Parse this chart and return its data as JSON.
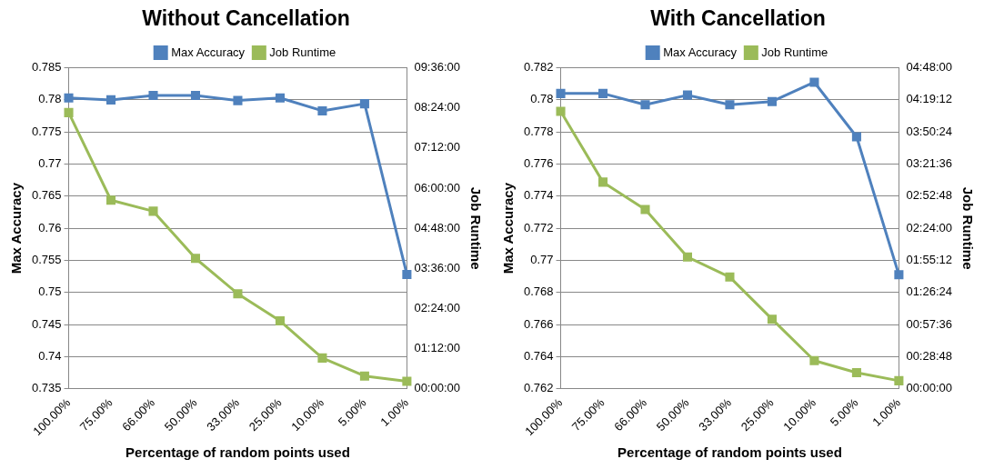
{
  "chart_data": [
    {
      "type": "line",
      "title": "Without Cancellation",
      "xlabel": "Percentage of random points used",
      "ylabel": "Max Accuracy",
      "y2label": "Job Runtime",
      "categories": [
        "100.00%",
        "75.00%",
        "66.00%",
        "50.00%",
        "33.00%",
        "25.00%",
        "10.00%",
        "5.00%",
        "1.00%"
      ],
      "series": [
        {
          "name": "Max Accuracy",
          "color": "#4f81bd",
          "values": [
            0.7803,
            0.78,
            0.7807,
            0.7807,
            0.7799,
            0.7803,
            0.7783,
            0.7794,
            0.7528
          ]
        },
        {
          "name": "Job Runtime",
          "color": "#9bbb59",
          "axis": "y2",
          "values": [
            8.26,
            5.64,
            5.31,
            3.9,
            2.84,
            2.03,
            0.92,
            0.38,
            0.22
          ]
        }
      ],
      "ylim": [
        0.735,
        0.785
      ],
      "yticks": [
        0.735,
        0.74,
        0.745,
        0.75,
        0.755,
        0.76,
        0.765,
        0.77,
        0.775,
        0.78,
        0.785
      ],
      "y2lim": [
        0,
        9.6
      ],
      "y2ticks": [
        {
          "value": 0,
          "label": "00:00:00"
        },
        {
          "value": 1.2,
          "label": "01:12:00"
        },
        {
          "value": 2.4,
          "label": "02:24:00"
        },
        {
          "value": 3.6,
          "label": "03:36:00"
        },
        {
          "value": 4.8,
          "label": "04:48:00"
        },
        {
          "value": 6,
          "label": "06:00:00"
        },
        {
          "value": 7.2,
          "label": "07:12:00"
        },
        {
          "value": 8.4,
          "label": "08:24:00"
        },
        {
          "value": 9.6,
          "label": "09:36:00"
        }
      ],
      "grid": "y",
      "legend": "top",
      "marker": "square",
      "line_style": "solid"
    },
    {
      "type": "line",
      "title": "With Cancellation",
      "xlabel": "Percentage of random points used",
      "ylabel": "Max Accuracy",
      "y2label": "Job Runtime",
      "categories": [
        "100.00%",
        "75.00%",
        "66.00%",
        "50.00%",
        "33.00%",
        "25.00%",
        "10.00%",
        "5.00%",
        "1.00%"
      ],
      "series": [
        {
          "name": "Max Accuracy",
          "color": "#4f81bd",
          "values": [
            0.7804,
            0.7804,
            0.7797,
            0.7803,
            0.7797,
            0.7799,
            0.7811,
            0.7777,
            0.7691
          ]
        },
        {
          "name": "Job Runtime",
          "color": "#9bbb59",
          "axis": "y2",
          "values": [
            4.15,
            3.09,
            2.68,
            1.97,
            1.67,
            1.04,
            0.42,
            0.24,
            0.12
          ]
        }
      ],
      "ylim": [
        0.762,
        0.782
      ],
      "yticks": [
        0.762,
        0.764,
        0.766,
        0.768,
        0.77,
        0.772,
        0.774,
        0.776,
        0.778,
        0.78,
        0.782
      ],
      "y2lim": [
        0,
        4.8
      ],
      "y2ticks": [
        {
          "value": 0,
          "label": "00:00:00"
        },
        {
          "value": 0.48,
          "label": "00:28:48"
        },
        {
          "value": 0.96,
          "label": "00:57:36"
        },
        {
          "value": 1.44,
          "label": "01:26:24"
        },
        {
          "value": 1.92,
          "label": "01:55:12"
        },
        {
          "value": 2.4,
          "label": "02:24:00"
        },
        {
          "value": 2.88,
          "label": "02:52:48"
        },
        {
          "value": 3.36,
          "label": "03:21:36"
        },
        {
          "value": 3.84,
          "label": "03:50:24"
        },
        {
          "value": 4.32,
          "label": "04:19:12"
        },
        {
          "value": 4.8,
          "label": "04:48:00"
        }
      ],
      "grid": "y",
      "legend": "top",
      "marker": "square",
      "line_style": "solid"
    }
  ]
}
